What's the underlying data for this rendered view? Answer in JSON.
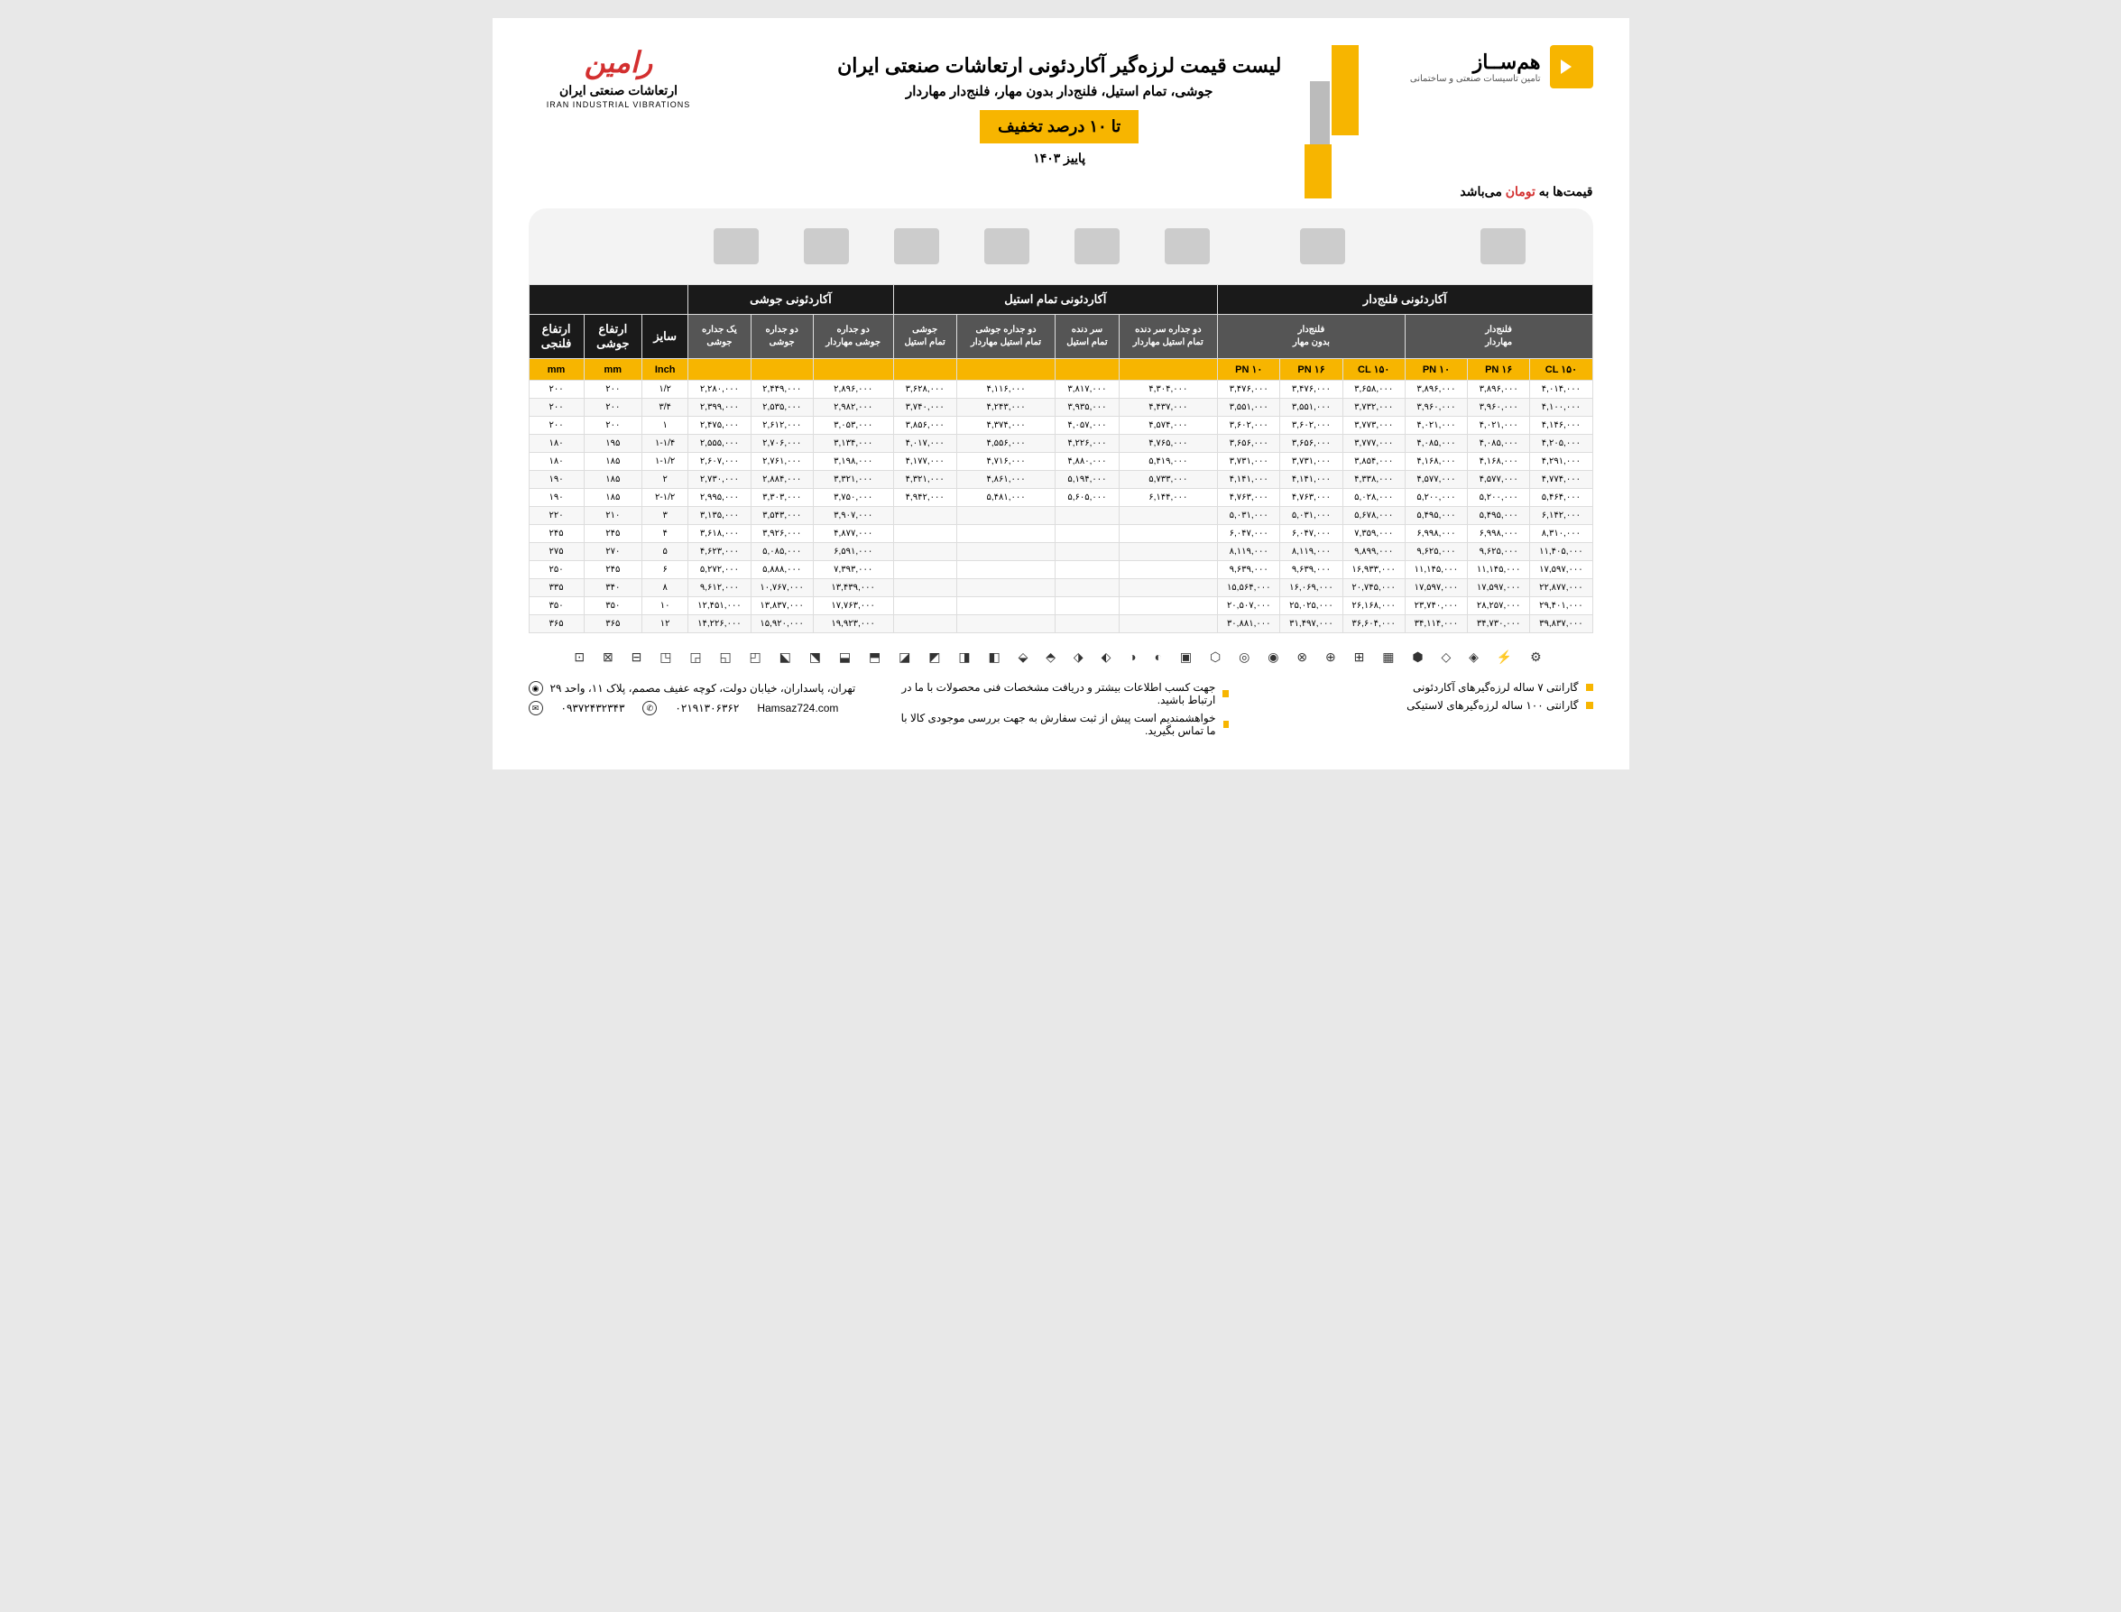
{
  "colors": {
    "accent": "#f7b500",
    "black": "#1a1a1a",
    "gray": "#555",
    "red": "#d32f2f",
    "bg": "#ffffff"
  },
  "logo_right": {
    "name": "هم‌ســاز",
    "sub": "تامین تاسیسات صنعتی و ساختمانی"
  },
  "logo_left": {
    "brand": "رامین",
    "fa": "ارتعاشات صنعتی ایران",
    "en": "IRAN INDUSTRIAL VIBRATIONS"
  },
  "header": {
    "title": "لیست قیمت لرزه‌گیر آکاردئونی ارتعاشات صنعتی ایران",
    "subtitle": "جوشی، تمام استیل، فلنج‌دار بدون مهار، فلنج‌دار مهاردار",
    "discount": "تا ۱۰ درصد تخفیف",
    "season": "پاییز ۱۴۰۳"
  },
  "price_note": {
    "pre": "قیمت‌ها به ",
    "red": "تومان",
    "post": " می‌باشد"
  },
  "table": {
    "group_headers": [
      "آکاردئونی فلنج‌دار",
      "آکاردئونی تمام استیل",
      "آکاردئونی جوشی",
      ""
    ],
    "sub_headers": [
      {
        "label": "فلنج‌دار\nمهاردار",
        "span": 3
      },
      {
        "label": "فلنج‌دار\nبدون مهار",
        "span": 3
      },
      {
        "label": "دو جداره سر دنده\nتمام استیل مهاردار",
        "span": 1
      },
      {
        "label": "سر دنده\nتمام استیل",
        "span": 1
      },
      {
        "label": "دو جداره جوشی\nتمام استیل مهاردار",
        "span": 1
      },
      {
        "label": "جوشی\nتمام استیل",
        "span": 1
      },
      {
        "label": "دو جداره\nجوشی مهاردار",
        "span": 1
      },
      {
        "label": "دو جداره\nجوشی",
        "span": 1
      },
      {
        "label": "یک جداره\nجوشی",
        "span": 1
      },
      {
        "label": "سایز",
        "span": 1,
        "dark": true
      },
      {
        "label": "ارتفاع\nجوشی",
        "span": 1,
        "dark": true
      },
      {
        "label": "ارتفاع\nفلنجی",
        "span": 1,
        "dark": true
      }
    ],
    "unit_row": [
      "CL ۱۵۰",
      "PN ۱۶",
      "PN ۱۰",
      "CL ۱۵۰",
      "PN ۱۶",
      "PN ۱۰",
      "",
      "",
      "",
      "",
      "",
      "",
      "",
      "Inch",
      "mm",
      "mm"
    ],
    "rows": [
      [
        "۴,۰۱۴,۰۰۰",
        "۳,۸۹۶,۰۰۰",
        "۳,۸۹۶,۰۰۰",
        "۳,۶۵۸,۰۰۰",
        "۳,۴۷۶,۰۰۰",
        "۳,۴۷۶,۰۰۰",
        "۴,۳۰۴,۰۰۰",
        "۳,۸۱۷,۰۰۰",
        "۴,۱۱۶,۰۰۰",
        "۳,۶۲۸,۰۰۰",
        "۲,۸۹۶,۰۰۰",
        "۲,۴۴۹,۰۰۰",
        "۲,۲۸۰,۰۰۰",
        "۱/۲",
        "۲۰۰",
        "۲۰۰"
      ],
      [
        "۴,۱۰۰,۰۰۰",
        "۳,۹۶۰,۰۰۰",
        "۳,۹۶۰,۰۰۰",
        "۳,۷۳۲,۰۰۰",
        "۳,۵۵۱,۰۰۰",
        "۳,۵۵۱,۰۰۰",
        "۴,۴۳۷,۰۰۰",
        "۳,۹۳۵,۰۰۰",
        "۴,۲۴۳,۰۰۰",
        "۳,۷۴۰,۰۰۰",
        "۲,۹۸۲,۰۰۰",
        "۲,۵۳۵,۰۰۰",
        "۲,۳۹۹,۰۰۰",
        "۳/۴",
        "۲۰۰",
        "۲۰۰"
      ],
      [
        "۴,۱۴۶,۰۰۰",
        "۴,۰۲۱,۰۰۰",
        "۴,۰۲۱,۰۰۰",
        "۳,۷۷۳,۰۰۰",
        "۳,۶۰۲,۰۰۰",
        "۳,۶۰۲,۰۰۰",
        "۴,۵۷۴,۰۰۰",
        "۴,۰۵۷,۰۰۰",
        "۴,۳۷۴,۰۰۰",
        "۳,۸۵۶,۰۰۰",
        "۳,۰۵۳,۰۰۰",
        "۲,۶۱۲,۰۰۰",
        "۲,۴۷۵,۰۰۰",
        "۱",
        "۲۰۰",
        "۲۰۰"
      ],
      [
        "۴,۲۰۵,۰۰۰",
        "۴,۰۸۵,۰۰۰",
        "۴,۰۸۵,۰۰۰",
        "۳,۷۷۷,۰۰۰",
        "۳,۶۵۶,۰۰۰",
        "۳,۶۵۶,۰۰۰",
        "۴,۷۶۵,۰۰۰",
        "۴,۲۲۶,۰۰۰",
        "۴,۵۵۶,۰۰۰",
        "۴,۰۱۷,۰۰۰",
        "۳,۱۳۴,۰۰۰",
        "۲,۷۰۶,۰۰۰",
        "۲,۵۵۵,۰۰۰",
        "۱-۱/۴",
        "۱۹۵",
        "۱۸۰"
      ],
      [
        "۴,۲۹۱,۰۰۰",
        "۴,۱۶۸,۰۰۰",
        "۴,۱۶۸,۰۰۰",
        "۳,۸۵۴,۰۰۰",
        "۳,۷۳۱,۰۰۰",
        "۳,۷۳۱,۰۰۰",
        "۵,۴۱۹,۰۰۰",
        "۴,۸۸۰,۰۰۰",
        "۴,۷۱۶,۰۰۰",
        "۴,۱۷۷,۰۰۰",
        "۳,۱۹۸,۰۰۰",
        "۲,۷۶۱,۰۰۰",
        "۲,۶۰۷,۰۰۰",
        "۱-۱/۲",
        "۱۸۵",
        "۱۸۰"
      ],
      [
        "۴,۷۷۴,۰۰۰",
        "۴,۵۷۷,۰۰۰",
        "۴,۵۷۷,۰۰۰",
        "۴,۳۳۸,۰۰۰",
        "۴,۱۴۱,۰۰۰",
        "۴,۱۴۱,۰۰۰",
        "۵,۷۳۳,۰۰۰",
        "۵,۱۹۴,۰۰۰",
        "۴,۸۶۱,۰۰۰",
        "۴,۳۲۱,۰۰۰",
        "۳,۳۲۱,۰۰۰",
        "۲,۸۸۴,۰۰۰",
        "۲,۷۳۰,۰۰۰",
        "۲",
        "۱۸۵",
        "۱۹۰"
      ],
      [
        "۵,۴۶۴,۰۰۰",
        "۵,۲۰۰,۰۰۰",
        "۵,۲۰۰,۰۰۰",
        "۵,۰۲۸,۰۰۰",
        "۴,۷۶۳,۰۰۰",
        "۴,۷۶۳,۰۰۰",
        "۶,۱۴۴,۰۰۰",
        "۵,۶۰۵,۰۰۰",
        "۵,۴۸۱,۰۰۰",
        "۴,۹۴۲,۰۰۰",
        "۳,۷۵۰,۰۰۰",
        "۳,۳۰۳,۰۰۰",
        "۲,۹۹۵,۰۰۰",
        "۲-۱/۲",
        "۱۸۵",
        "۱۹۰"
      ],
      [
        "۶,۱۴۲,۰۰۰",
        "۵,۴۹۵,۰۰۰",
        "۵,۴۹۵,۰۰۰",
        "۵,۶۷۸,۰۰۰",
        "۵,۰۳۱,۰۰۰",
        "۵,۰۳۱,۰۰۰",
        "",
        "",
        "",
        "",
        "۳,۹۰۷,۰۰۰",
        "۳,۵۴۳,۰۰۰",
        "۳,۱۳۵,۰۰۰",
        "۳",
        "۲۱۰",
        "۲۲۰"
      ],
      [
        "۸,۳۱۰,۰۰۰",
        "۶,۹۹۸,۰۰۰",
        "۶,۹۹۸,۰۰۰",
        "۷,۳۵۹,۰۰۰",
        "۶,۰۴۷,۰۰۰",
        "۶,۰۴۷,۰۰۰",
        "",
        "",
        "",
        "",
        "۴,۸۷۷,۰۰۰",
        "۳,۹۲۶,۰۰۰",
        "۳,۶۱۸,۰۰۰",
        "۴",
        "۲۴۵",
        "۲۴۵"
      ],
      [
        "۱۱,۴۰۵,۰۰۰",
        "۹,۶۲۵,۰۰۰",
        "۹,۶۲۵,۰۰۰",
        "۹,۸۹۹,۰۰۰",
        "۸,۱۱۹,۰۰۰",
        "۸,۱۱۹,۰۰۰",
        "",
        "",
        "",
        "",
        "۶,۵۹۱,۰۰۰",
        "۵,۰۸۵,۰۰۰",
        "۴,۶۲۳,۰۰۰",
        "۵",
        "۲۷۰",
        "۲۷۵"
      ],
      [
        "۱۷,۵۹۷,۰۰۰",
        "۱۱,۱۴۵,۰۰۰",
        "۱۱,۱۴۵,۰۰۰",
        "۱۶,۹۳۳,۰۰۰",
        "۹,۶۳۹,۰۰۰",
        "۹,۶۳۹,۰۰۰",
        "",
        "",
        "",
        "",
        "۷,۳۹۳,۰۰۰",
        "۵,۸۸۸,۰۰۰",
        "۵,۲۷۲,۰۰۰",
        "۶",
        "۲۴۵",
        "۲۵۰"
      ],
      [
        "۲۲,۸۷۷,۰۰۰",
        "۱۷,۵۹۷,۰۰۰",
        "۱۷,۵۹۷,۰۰۰",
        "۲۰,۷۴۵,۰۰۰",
        "۱۶,۰۶۹,۰۰۰",
        "۱۵,۵۶۴,۰۰۰",
        "",
        "",
        "",
        "",
        "۱۳,۴۳۹,۰۰۰",
        "۱۰,۷۶۷,۰۰۰",
        "۹,۶۱۲,۰۰۰",
        "۸",
        "۳۴۰",
        "۳۳۵"
      ],
      [
        "۲۹,۴۰۱,۰۰۰",
        "۲۸,۲۵۷,۰۰۰",
        "۲۳,۷۴۰,۰۰۰",
        "۲۶,۱۶۸,۰۰۰",
        "۲۵,۰۲۵,۰۰۰",
        "۲۰,۵۰۷,۰۰۰",
        "",
        "",
        "",
        "",
        "۱۷,۷۶۳,۰۰۰",
        "۱۳,۸۳۷,۰۰۰",
        "۱۲,۴۵۱,۰۰۰",
        "۱۰",
        "۳۵۰",
        "۳۵۰"
      ],
      [
        "۳۹,۸۳۷,۰۰۰",
        "۳۴,۷۳۰,۰۰۰",
        "۳۴,۱۱۴,۰۰۰",
        "۳۶,۶۰۴,۰۰۰",
        "۳۱,۴۹۷,۰۰۰",
        "۳۰,۸۸۱,۰۰۰",
        "",
        "",
        "",
        "",
        "۱۹,۹۲۳,۰۰۰",
        "۱۵,۹۲۰,۰۰۰",
        "۱۴,۲۲۶,۰۰۰",
        "۱۲",
        "۳۶۵",
        "۳۶۵"
      ]
    ]
  },
  "icon_strip": "⚙ ⚡ ◈ ◇ ⬢ ▦ ⊞ ⊕ ⊗ ◉ ◎ ⬡ ▣ ◐ ◑ ⬖ ⬗ ⬘ ⬙ ◧ ◨ ◩ ◪ ⬒ ⬓ ⬔ ⬕ ◰ ◱ ◲ ◳ ⊟ ⊠ ⊡",
  "footer": {
    "col1": [
      "گارانتی ۷ ساله لرزه‌گیرهای آکاردئونی",
      "گارانتی ۱۰۰ ساله لرزه‌گیرهای لاستیکی"
    ],
    "col2": [
      "جهت کسب اطلاعات بیشتر و دریافت مشخصات فنی محصولات با ما در ارتباط باشید.",
      "خواهشمندیم است پیش از ثبت سفارش به جهت بررسی موجودی کالا با ما تماس بگیرید."
    ],
    "col3": {
      "address": "تهران، پاسداران، خیابان دولت، کوچه عفیف مصمم، پلاک ۱۱، واحد ۲۹",
      "phone1": "۰۹۳۷۲۴۳۲۳۴۳",
      "phone2": "۰۲۱۹۱۳۰۶۳۶۲",
      "web": "Hamsaz724.com"
    }
  }
}
